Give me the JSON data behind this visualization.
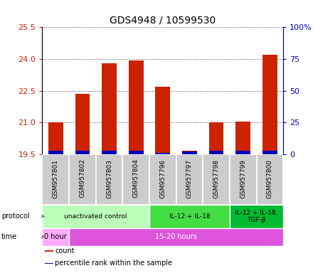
{
  "title": "GDS4948 / 10599530",
  "samples": [
    "GSM957801",
    "GSM957802",
    "GSM957803",
    "GSM957804",
    "GSM957796",
    "GSM957797",
    "GSM957798",
    "GSM957799",
    "GSM957800"
  ],
  "red_values": [
    21.0,
    22.35,
    23.8,
    23.95,
    22.7,
    19.65,
    21.0,
    21.05,
    24.2
  ],
  "blue_heights": [
    0.18,
    0.18,
    0.18,
    0.18,
    0.08,
    0.12,
    0.18,
    0.18,
    0.18
  ],
  "base_value": 19.5,
  "ylim": [
    19.5,
    25.5
  ],
  "yticks_left": [
    19.5,
    21.0,
    22.5,
    24.0,
    25.5
  ],
  "yticks_right": [
    0,
    25,
    50,
    75,
    100
  ],
  "protocol_groups": [
    {
      "label": "unactivated control",
      "start": 0,
      "end": 4,
      "color": "#bbffbb"
    },
    {
      "label": "IL-12 + IL-18",
      "start": 4,
      "end": 7,
      "color": "#44dd44"
    },
    {
      "label": "IL-12 + IL-18,\nTGF-β",
      "start": 7,
      "end": 9,
      "color": "#00bb33"
    }
  ],
  "time_groups": [
    {
      "label": "0 hour",
      "start": 0,
      "end": 1,
      "color": "#ffaaff"
    },
    {
      "label": "15-20 hours",
      "start": 1,
      "end": 9,
      "color": "#dd55dd"
    }
  ],
  "legend_items": [
    {
      "label": "count",
      "color": "#cc2200"
    },
    {
      "label": "percentile rank within the sample",
      "color": "#0000bb"
    }
  ],
  "bar_color_red": "#cc2200",
  "bar_color_blue": "#0000bb",
  "left_axis_color": "#cc2200",
  "right_axis_color": "#0000bb",
  "sample_box_color": "#cccccc",
  "dotted_line_color": "#444444",
  "fig_width": 4.4,
  "fig_height": 3.84,
  "dpi": 100
}
